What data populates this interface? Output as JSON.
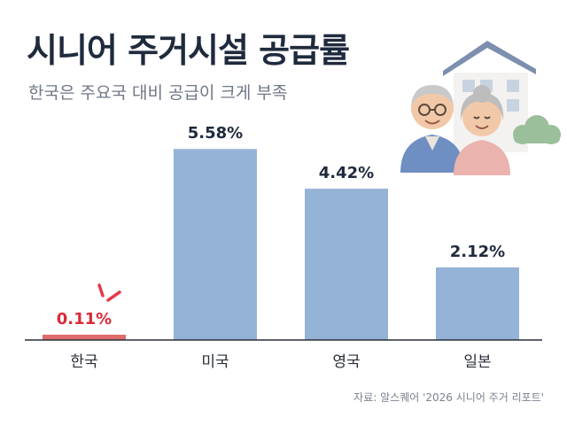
{
  "header": {
    "title": "시니어 주거시설 공급률",
    "subtitle": "한국은 주요국 대비 공급이 크게 부족"
  },
  "source": "자료: 알스퀘어 '2026 시니어 주거 리포트'",
  "colors": {
    "bar": "#95b3d7",
    "highlight_bar": "#e06b6b",
    "highlight_text": "#d92b3a",
    "value_text": "#1f2a3d",
    "axis": "#2a2f38"
  },
  "illustration": {
    "icons": [
      "house-icon",
      "grandfather-icon",
      "grandmother-icon",
      "bush-icon"
    ]
  },
  "chart_data": {
    "type": "bar",
    "categories": [
      "한국",
      "미국",
      "영국",
      "일본"
    ],
    "values": [
      0.11,
      5.58,
      4.42,
      2.12
    ],
    "value_labels": [
      "0.11%",
      "5.58%",
      "4.42%",
      "2.12%"
    ],
    "highlight_index": 0,
    "title": "시니어 주거시설 공급률",
    "subtitle": "한국은 주요국 대비 공급이 크게 부족",
    "xlabel": "",
    "ylabel": "",
    "ylim": [
      0,
      6.0
    ],
    "grid": false,
    "legend": "none"
  }
}
